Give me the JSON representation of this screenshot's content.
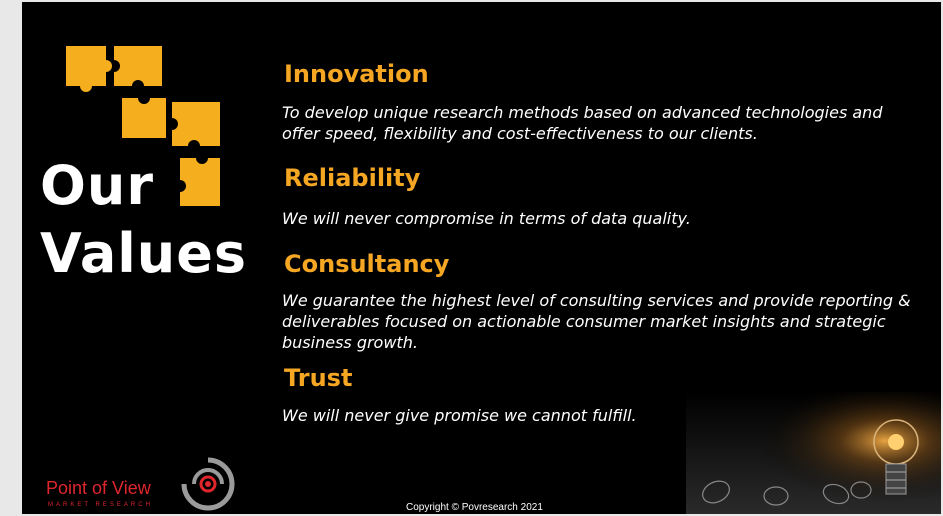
{
  "slide": {
    "title_line1": "Our",
    "title_line2": "Values",
    "values": [
      {
        "heading": "Innovation",
        "text": "To develop unique research methods based on advanced technologies and offer speed, flexibility and cost-effectiveness to our clients."
      },
      {
        "heading": "Reliability",
        "text": "We will never compromise in terms of data quality."
      },
      {
        "heading": "Consultancy",
        "text": "We guarantee the highest level of consulting services and provide reporting & deliverables focused on actionable consumer market insights and strategic business growth."
      },
      {
        "heading": "Trust",
        "text": "We will never give promise we cannot fulfill."
      }
    ],
    "logo": {
      "name": "Point of View",
      "subtitle": "MARKET RESEARCH"
    },
    "copyright": "Copyright © Povresearch 2021",
    "colors": {
      "accent": "#f5a623",
      "background": "#000000",
      "brand_red": "#e0262d",
      "text": "#ffffff"
    },
    "icons": [
      "puzzle-pieces-icon",
      "target-logo-icon",
      "light-bulbs-image"
    ]
  }
}
